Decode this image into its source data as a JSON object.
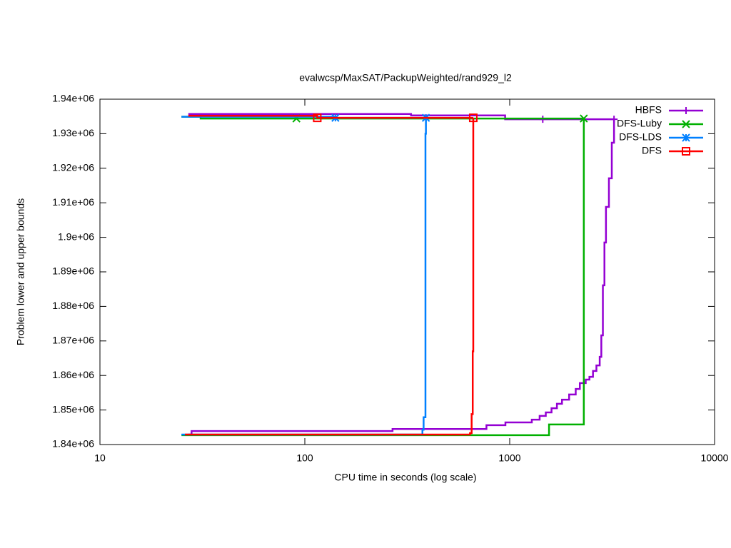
{
  "chart_data": {
    "type": "line",
    "title": "evalwcsp/MaxSAT/PackupWeighted/rand929_l2",
    "x_label": "CPU time in seconds (log scale)",
    "y_label": "Problem lower and upper bounds",
    "x_log": true,
    "xlim": [
      10,
      10000
    ],
    "xticks": [
      10,
      100,
      1000,
      10000
    ],
    "ylim": [
      1840000,
      1940000
    ],
    "yticks": [
      {
        "value": 1840000,
        "label": "1.84e+06"
      },
      {
        "value": 1850000,
        "label": "1.85e+06"
      },
      {
        "value": 1860000,
        "label": "1.86e+06"
      },
      {
        "value": 1870000,
        "label": "1.87e+06"
      },
      {
        "value": 1880000,
        "label": "1.88e+06"
      },
      {
        "value": 1890000,
        "label": "1.89e+06"
      },
      {
        "value": 1900000,
        "label": "1.9e+06"
      },
      {
        "value": 1910000,
        "label": "1.91e+06"
      },
      {
        "value": 1920000,
        "label": "1.92e+06"
      },
      {
        "value": 1930000,
        "label": "1.93e+06"
      },
      {
        "value": 1940000,
        "label": "1.94e+06"
      }
    ],
    "legend": "top-right",
    "series": [
      {
        "name": "HBFS",
        "color": "#9400d3",
        "marker": "plus",
        "x": [
          27,
          330,
          950,
          1450,
          3230,
          null,
          27,
          28,
          268,
          770,
          953,
          1282,
          1400,
          1500,
          1600,
          1700,
          1800,
          1950,
          2100,
          2200,
          2350,
          2450,
          2550,
          2650,
          2750,
          2800,
          2850,
          2900,
          2950,
          3050,
          3150,
          3230
        ],
        "values": [
          1935700,
          1935300,
          1934200,
          1934200,
          1934200,
          null,
          1842900,
          1843900,
          1844500,
          1845600,
          1846400,
          1847200,
          1848300,
          1849300,
          1850500,
          1851800,
          1853000,
          1854500,
          1856100,
          1857800,
          1858800,
          1859600,
          1861300,
          1862900,
          1865400,
          1871600,
          1886100,
          1898500,
          1908800,
          1917100,
          1927400,
          1934200
        ]
      },
      {
        "name": "DFS-Luby",
        "color": "#00b000",
        "marker": "cross",
        "x": [
          25,
          31,
          91,
          2300,
          null,
          25,
          1556,
          2300
        ],
        "values": [
          1934900,
          1934400,
          1934400,
          1934400,
          null,
          1842700,
          1845800,
          1934400
        ]
      },
      {
        "name": "DFS-LDS",
        "color": "#0080ff",
        "marker": "star",
        "x": [
          25,
          141,
          390,
          null,
          25,
          375,
          380,
          388,
          390
        ],
        "values": [
          1934900,
          1934600,
          1934600,
          null,
          1842900,
          1844300,
          1847900,
          1930000,
          1934600
        ]
      },
      {
        "name": "DFS",
        "color": "#ff0000",
        "marker": "square",
        "x": [
          27,
          115,
          664,
          null,
          26,
          640,
          652,
          660,
          664
        ],
        "values": [
          1935200,
          1934600,
          1934600,
          null,
          1842900,
          1843300,
          1848800,
          1867000,
          1934600
        ]
      }
    ]
  }
}
